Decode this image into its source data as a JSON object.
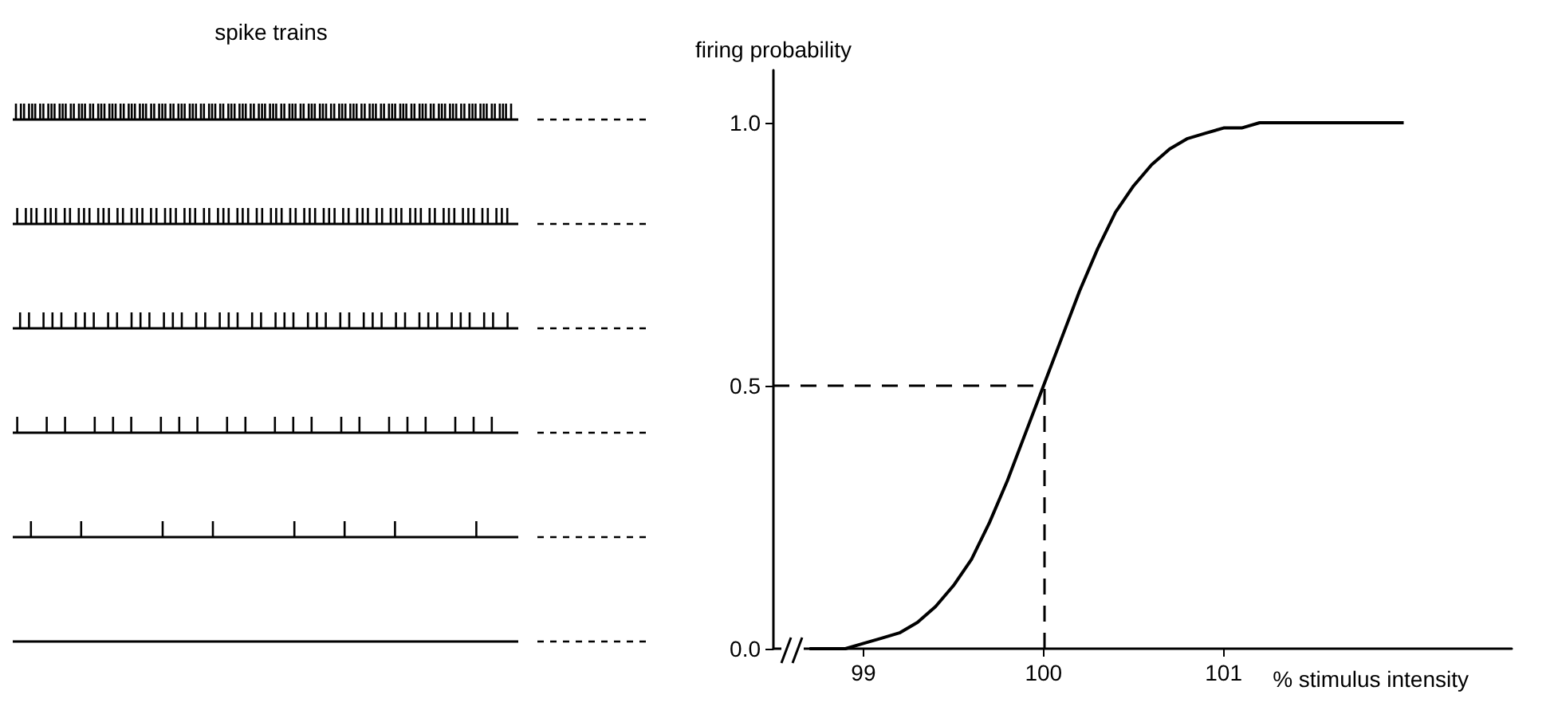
{
  "chart_data": {
    "type": "line",
    "ylabel": "firing probability",
    "xlabel": "% stimulus intensity",
    "annotations": [
      "spike trains"
    ],
    "x": [
      98.7,
      98.8,
      98.9,
      99,
      99.1,
      99.2,
      99.3,
      99.4,
      99.5,
      99.6,
      99.7,
      99.8,
      99.9,
      100,
      100.1,
      100.2,
      100.3,
      100.4,
      100.5,
      100.6,
      100.7,
      100.8,
      100.9,
      101,
      101.1,
      101.2,
      101.5,
      102
    ],
    "series": [
      {
        "color": "#000000",
        "values": [
          0,
          0,
          0,
          0.01,
          0.02,
          0.03,
          0.05,
          0.08,
          0.12,
          0.17,
          0.24,
          0.32,
          0.41,
          0.5,
          0.59,
          0.68,
          0.76,
          0.83,
          0.88,
          0.92,
          0.95,
          0.97,
          0.98,
          0.99,
          0.99,
          1,
          1,
          1
        ]
      }
    ],
    "xlim": [
      98.5,
      102.6
    ],
    "xticks": [
      99,
      100,
      101
    ],
    "ylim": [
      0,
      1.1
    ],
    "yticks": [
      {
        "value": 0,
        "label": "0.0"
      },
      {
        "value": 0.5,
        "label": "0.5"
      },
      {
        "value": 1,
        "label": "1.0"
      }
    ],
    "ref_lines": [
      {
        "axis": "y",
        "value": 0.5,
        "color": "#000000",
        "line_style": "dashed"
      },
      {
        "axis": "x",
        "value": 100,
        "color": "#000000",
        "line_style": "dashed"
      }
    ],
    "grid": false,
    "marker": "none",
    "line_style": "solid"
  }
}
